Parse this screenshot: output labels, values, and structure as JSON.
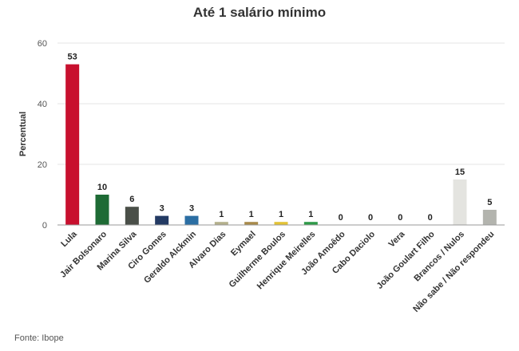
{
  "chart_data": {
    "type": "bar",
    "title": "Até 1 salário mínimo",
    "ylabel": "Percentual",
    "xlabel": "",
    "ylim": [
      0,
      60
    ],
    "yticks": [
      0,
      20,
      40,
      60
    ],
    "grid": true,
    "legend": "none",
    "categories": [
      "Lula",
      "Jair Bolsonaro",
      "Marina Silva",
      "Ciro Gomes",
      "Geraldo Alckmin",
      "Alvaro Dias",
      "Eymael",
      "Guilherme Boulos",
      "Henrique Meirelles",
      "João Amoêdo",
      "Cabo Daciolo",
      "Vera",
      "João Goulart Filho",
      "Brancos / Nulos",
      "Não sabe / Não respondeu"
    ],
    "values": [
      53,
      10,
      6,
      3,
      3,
      1,
      1,
      1,
      1,
      0,
      0,
      0,
      0,
      15,
      5
    ],
    "colors": [
      "#c8102e",
      "#1e6b35",
      "#4a4f48",
      "#233a63",
      "#2b6ea3",
      "#b4b08c",
      "#a88a4a",
      "#e2c234",
      "#2e9a48",
      "#cccccc",
      "#cccccc",
      "#cccccc",
      "#cccccc",
      "#e4e4e0",
      "#b3b4ae"
    ]
  },
  "source": "Fonte: Ibope"
}
